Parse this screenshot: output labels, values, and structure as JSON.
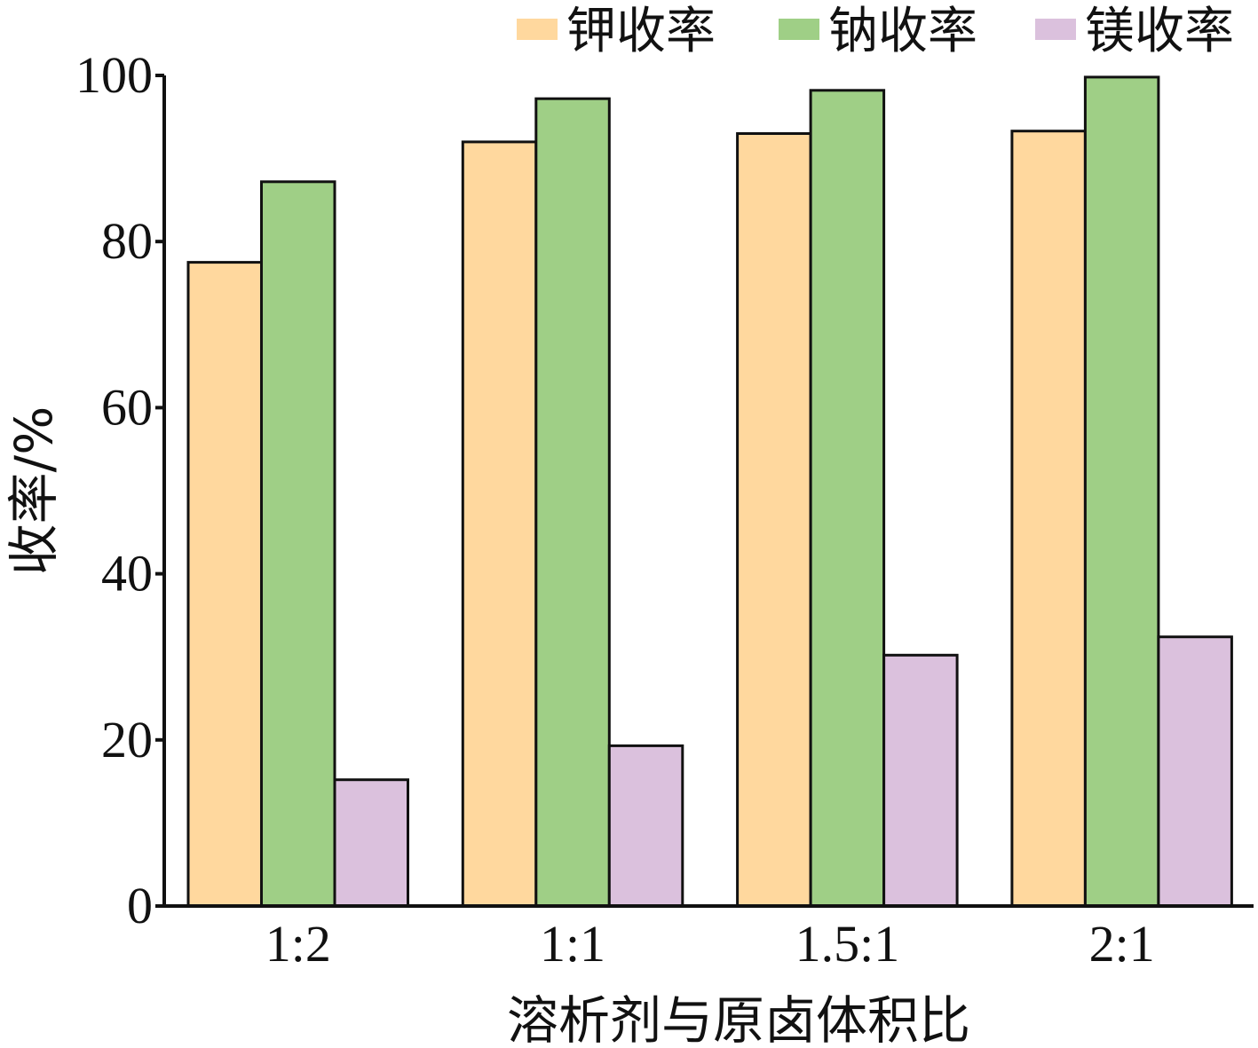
{
  "chart_data": {
    "type": "bar",
    "categories": [
      "1:2",
      "1:1",
      "1.5:1",
      "2:1"
    ],
    "series": [
      {
        "name": "钾收率",
        "color": "#FFD89E",
        "values": [
          77.5,
          92,
          93,
          93.3
        ]
      },
      {
        "name": "钠收率",
        "color": "#9FCF86",
        "values": [
          87.2,
          97.2,
          98.2,
          99.8
        ]
      },
      {
        "name": "镁收率",
        "color": "#DBC1DD",
        "values": [
          15.2,
          19.3,
          30.2,
          32.4
        ]
      }
    ],
    "xlabel": "溶析剂与原卤体积比",
    "ylabel": "收率/%",
    "ylim": [
      0,
      100
    ],
    "yticks": [
      0,
      20,
      40,
      60,
      80,
      100
    ],
    "legend_position": "top-right",
    "grid": false
  }
}
